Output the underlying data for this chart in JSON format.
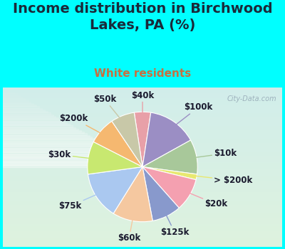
{
  "title": "Income distribution in Birchwood\nLakes, PA (%)",
  "subtitle": "White residents",
  "bg_color": "#00FFFF",
  "chart_bg_colors": [
    "#e8f5ee",
    "#d8eee8",
    "#c8e8e0"
  ],
  "slices": [
    {
      "label": "$40k",
      "value": 4.5,
      "color": "#e8a0a8"
    },
    {
      "label": "$100k",
      "value": 13.5,
      "color": "#9b8ec4"
    },
    {
      "label": "$10k",
      "value": 9.5,
      "color": "#a8c89a"
    },
    {
      "label": "> $200k",
      "value": 1.5,
      "color": "#e8e870"
    },
    {
      "label": "$20k",
      "value": 9.0,
      "color": "#f4a0b0"
    },
    {
      "label": "$125k",
      "value": 8.0,
      "color": "#8899cc"
    },
    {
      "label": "$60k",
      "value": 11.0,
      "color": "#f5c8a0"
    },
    {
      "label": "$75k",
      "value": 13.0,
      "color": "#aac8f0"
    },
    {
      "label": "$30k",
      "value": 9.0,
      "color": "#c8e870"
    },
    {
      "label": "$200k",
      "value": 7.5,
      "color": "#f5b870"
    },
    {
      "label": "$50k",
      "value": 6.5,
      "color": "#c8c8a8"
    }
  ],
  "watermark": "City-Data.com",
  "title_fontsize": 14,
  "subtitle_fontsize": 11,
  "label_fontsize": 8.5
}
